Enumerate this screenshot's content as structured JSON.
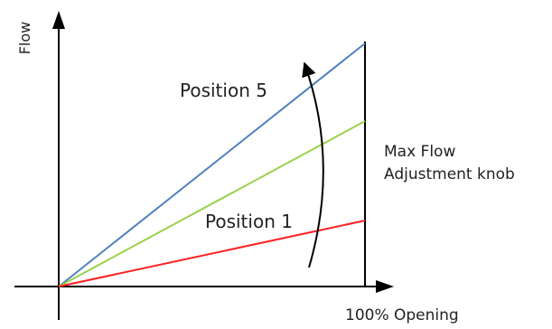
{
  "diagram": {
    "axis_y_label": "Flow",
    "axis_x_label": "100% Opening",
    "position_top_label": "Position 5",
    "position_bottom_label": "Position 1",
    "knob_label_line1": "Max Flow",
    "knob_label_line2": "Adjustment knob"
  },
  "colors": {
    "axis": "#000000",
    "position_5_line": "#4f81bd",
    "middle_line": "#9bd14a",
    "position_1_line": "#ff1f1f",
    "arrow": "#000000"
  }
}
